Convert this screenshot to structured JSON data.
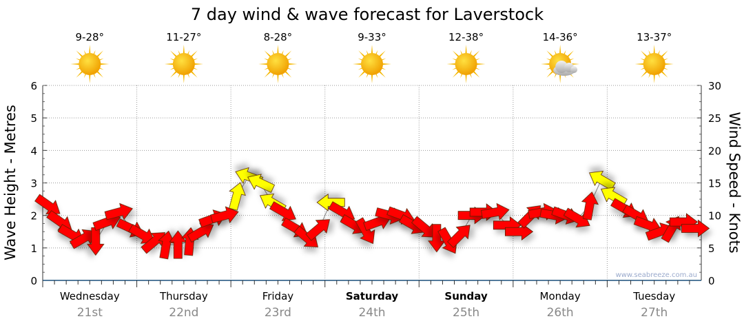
{
  "chart_data": {
    "type": "scatter",
    "title": "7 day wind & wave forecast for Laverstock",
    "ylabel": "Wave Height - Metres",
    "y2label": "Wind Speed - Knots",
    "ylim": [
      0,
      6
    ],
    "y2lim": [
      0,
      30
    ],
    "yticks": [
      "0",
      "1",
      "2",
      "3",
      "4",
      "5",
      "6"
    ],
    "y2ticks": [
      "0",
      "5",
      "10",
      "15",
      "20",
      "25",
      "30"
    ],
    "grid": true,
    "watermark": "www.seabreeze.com.au",
    "days": [
      {
        "name": "Wednesday",
        "date": "21st",
        "temp": "9-28°",
        "icon": "sunny-icon",
        "bold": false
      },
      {
        "name": "Thursday",
        "date": "22nd",
        "temp": "11-27°",
        "icon": "sunny-icon",
        "bold": false
      },
      {
        "name": "Friday",
        "date": "23rd",
        "temp": "8-28°",
        "icon": "sunny-icon",
        "bold": false
      },
      {
        "name": "Saturday",
        "date": "24th",
        "temp": "9-33°",
        "icon": "sunny-icon",
        "bold": true
      },
      {
        "name": "Sunday",
        "date": "25th",
        "temp": "12-38°",
        "icon": "sunny-icon",
        "bold": true
      },
      {
        "name": "Monday",
        "date": "26th",
        "temp": "14-36°",
        "icon": "partly-cloudy-icon",
        "bold": false
      },
      {
        "name": "Tuesday",
        "date": "27th",
        "temp": "13-37°",
        "icon": "sunny-icon",
        "bold": false
      }
    ],
    "wind_interval_hours": 3,
    "wind_speed_knots": [
      11.5,
      9,
      7,
      6.5,
      6,
      9,
      10.5,
      8,
      7,
      6,
      5.5,
      5.5,
      6,
      7.5,
      9.5,
      10,
      13,
      16,
      15,
      12,
      10.5,
      8,
      6.5,
      8,
      12,
      10.5,
      8.5,
      7.5,
      9,
      10,
      10,
      8.5,
      8,
      6.5,
      6,
      7,
      10,
      10.5,
      10.5,
      8.5,
      7.5,
      10,
      10.5,
      10,
      10,
      9.5,
      11.5,
      15.5,
      13,
      11,
      10,
      8.5,
      7.5,
      8,
      9,
      8
    ],
    "wind_arrow_rotation_deg": [
      35,
      35,
      30,
      -30,
      90,
      -20,
      -15,
      25,
      30,
      -40,
      -80,
      -90,
      -85,
      -30,
      -20,
      -15,
      -75,
      200,
      205,
      210,
      30,
      30,
      40,
      -40,
      180,
      30,
      30,
      60,
      -20,
      15,
      20,
      30,
      40,
      90,
      60,
      -45,
      0,
      0,
      -10,
      0,
      0,
      -45,
      -10,
      10,
      20,
      30,
      -80,
      210,
      210,
      30,
      30,
      20,
      -20,
      -60,
      0,
      0
    ],
    "colors": {
      "strong": "#ffff00",
      "moderate": "#ff0000",
      "strong_threshold_knots": 12
    }
  }
}
